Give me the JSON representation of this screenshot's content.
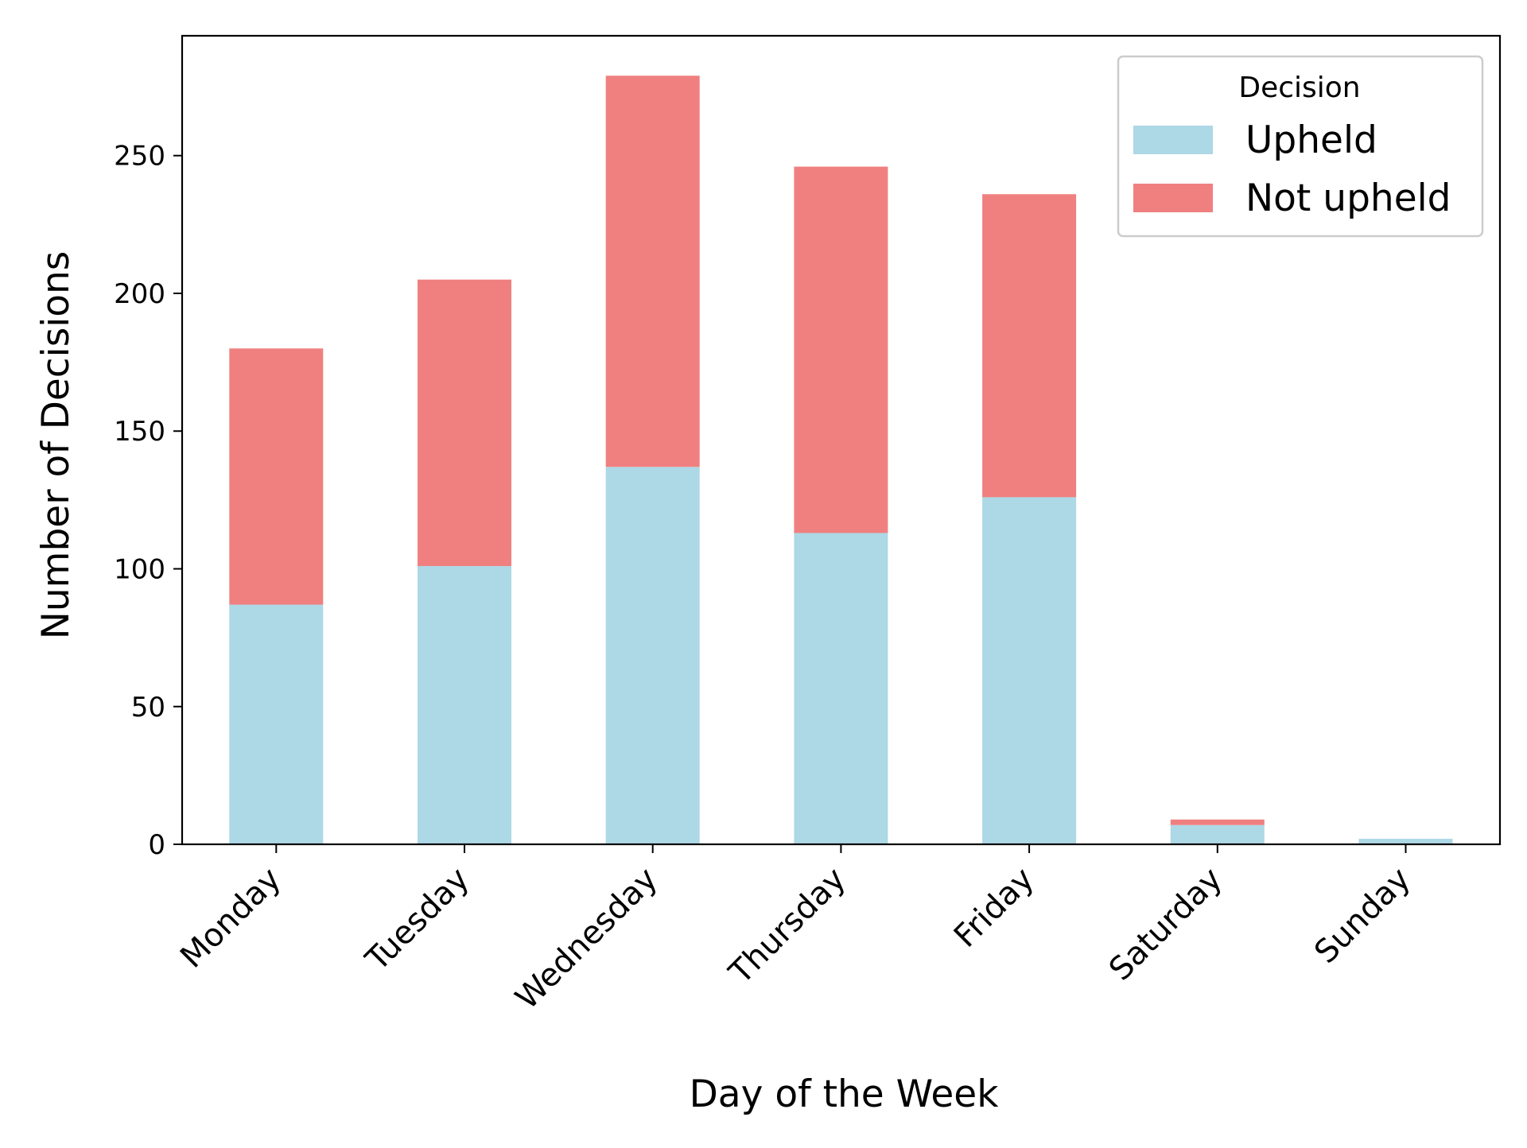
{
  "chart_data": {
    "type": "bar",
    "stacked": true,
    "title": "",
    "xlabel": "Day of the Week",
    "ylabel": "Number of Decisions",
    "categories": [
      "Monday",
      "Tuesday",
      "Wednesday",
      "Thursday",
      "Friday",
      "Saturday",
      "Sunday"
    ],
    "series": [
      {
        "name": "Upheld",
        "color": "#add8e6",
        "values": [
          87,
          101,
          137,
          113,
          126,
          7,
          2
        ]
      },
      {
        "name": "Not upheld",
        "color": "#f08080",
        "values": [
          93,
          104,
          142,
          133,
          110,
          2,
          0
        ]
      }
    ],
    "ylim": [
      0,
      293.5
    ],
    "yticks": [
      0,
      50,
      100,
      150,
      200,
      250
    ],
    "grid": false,
    "legend": {
      "title": "Decision",
      "placement": "top-right"
    }
  }
}
